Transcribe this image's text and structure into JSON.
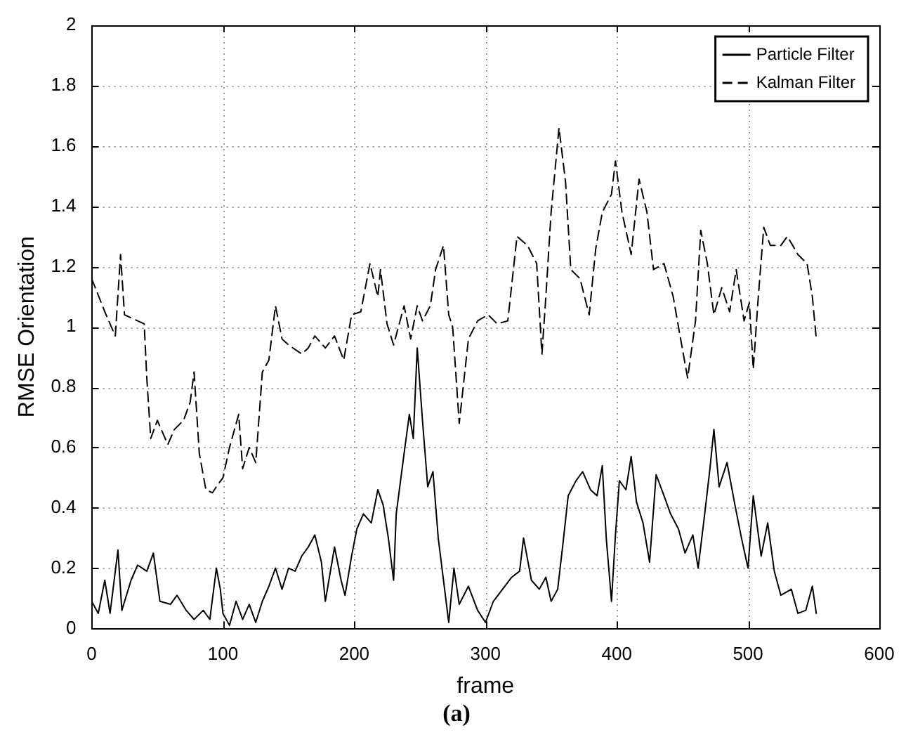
{
  "chart_data": {
    "type": "line",
    "xlabel": "frame",
    "ylabel": "RMSE Orientation",
    "xlim": [
      0,
      600
    ],
    "xticks": [
      0,
      100,
      200,
      300,
      400,
      500,
      600
    ],
    "ylim": [
      0,
      2
    ],
    "yticks": [
      0,
      0.2,
      0.4,
      0.6,
      0.8,
      1,
      1.2,
      1.4,
      1.6,
      1.8,
      2
    ],
    "grid": true,
    "legend": "top right",
    "marker": "none",
    "annotations": [
      "(a)"
    ],
    "series": [
      {
        "name": "Particle Filter",
        "color": "#000000",
        "line_style": "solid",
        "x": [
          0,
          5,
          10,
          14,
          20,
          23,
          30,
          35,
          42,
          47,
          52,
          60,
          65,
          72,
          78,
          85,
          90,
          95,
          98,
          100,
          105,
          110,
          115,
          120,
          125,
          130,
          135,
          140,
          145,
          150,
          155,
          160,
          165,
          170,
          175,
          178,
          185,
          190,
          193,
          198,
          202,
          207,
          213,
          218,
          222,
          226,
          230,
          232,
          238,
          242,
          245,
          248,
          252,
          256,
          260,
          264,
          268,
          272,
          276,
          280,
          287,
          294,
          300,
          306,
          313,
          320,
          326,
          329,
          335,
          341,
          346,
          350,
          355,
          359,
          363,
          369,
          374,
          380,
          385,
          389,
          392,
          396,
          399,
          402,
          407,
          411,
          415,
          420,
          425,
          430,
          436,
          441,
          447,
          452,
          458,
          462,
          467,
          471,
          474,
          478,
          484,
          490,
          495,
          500,
          504,
          510,
          515,
          520,
          525,
          533,
          538,
          544,
          549,
          552
        ],
        "values": [
          0.09,
          0.05,
          0.16,
          0.05,
          0.26,
          0.06,
          0.16,
          0.21,
          0.19,
          0.25,
          0.09,
          0.08,
          0.11,
          0.06,
          0.03,
          0.06,
          0.03,
          0.2,
          0.13,
          0.05,
          0.01,
          0.09,
          0.03,
          0.08,
          0.02,
          0.09,
          0.14,
          0.2,
          0.13,
          0.2,
          0.19,
          0.24,
          0.27,
          0.31,
          0.22,
          0.09,
          0.27,
          0.16,
          0.11,
          0.24,
          0.33,
          0.38,
          0.35,
          0.46,
          0.41,
          0.3,
          0.16,
          0.38,
          0.58,
          0.71,
          0.63,
          0.93,
          0.69,
          0.47,
          0.52,
          0.3,
          0.16,
          0.02,
          0.2,
          0.08,
          0.14,
          0.06,
          0.02,
          0.09,
          0.13,
          0.17,
          0.19,
          0.3,
          0.16,
          0.13,
          0.17,
          0.09,
          0.13,
          0.28,
          0.44,
          0.49,
          0.52,
          0.46,
          0.44,
          0.54,
          0.3,
          0.09,
          0.31,
          0.49,
          0.46,
          0.57,
          0.42,
          0.35,
          0.22,
          0.51,
          0.44,
          0.38,
          0.33,
          0.25,
          0.31,
          0.2,
          0.38,
          0.53,
          0.66,
          0.47,
          0.55,
          0.41,
          0.3,
          0.2,
          0.44,
          0.24,
          0.35,
          0.19,
          0.11,
          0.13,
          0.05,
          0.06,
          0.14,
          0.05
        ]
      },
      {
        "name": "Kalman Filter",
        "color": "#000000",
        "line_style": "dashed",
        "x": [
          0,
          10,
          18,
          22,
          25,
          35,
          40,
          42,
          45,
          50,
          58,
          63,
          70,
          75,
          78,
          82,
          87,
          92,
          95,
          100,
          105,
          112,
          115,
          120,
          125,
          130,
          135,
          140,
          145,
          150,
          160,
          165,
          170,
          178,
          185,
          192,
          198,
          205,
          212,
          218,
          220,
          225,
          230,
          238,
          243,
          248,
          252,
          258,
          262,
          268,
          272,
          275,
          280,
          287,
          294,
          302,
          309,
          317,
          324,
          332,
          339,
          343,
          346,
          350,
          356,
          361,
          365,
          372,
          379,
          384,
          389,
          396,
          399,
          404,
          411,
          417,
          423,
          428,
          436,
          443,
          447,
          454,
          460,
          464,
          469,
          474,
          480,
          486,
          491,
          497,
          501,
          504,
          508,
          512,
          517,
          525,
          530,
          538,
          545,
          549,
          552
        ],
        "values": [
          1.16,
          1.05,
          0.97,
          1.24,
          1.04,
          1.02,
          1.01,
          0.83,
          0.63,
          0.69,
          0.61,
          0.66,
          0.69,
          0.75,
          0.85,
          0.58,
          0.46,
          0.45,
          0.47,
          0.5,
          0.6,
          0.71,
          0.53,
          0.6,
          0.55,
          0.85,
          0.89,
          1.07,
          0.96,
          0.94,
          0.91,
          0.93,
          0.97,
          0.93,
          0.97,
          0.89,
          1.04,
          1.05,
          1.21,
          1.1,
          1.19,
          1.01,
          0.94,
          1.07,
          0.96,
          1.07,
          1.02,
          1.07,
          1.19,
          1.27,
          1.04,
          1,
          0.68,
          0.96,
          1.02,
          1.04,
          1.01,
          1.02,
          1.3,
          1.27,
          1.21,
          0.91,
          1.1,
          1.38,
          1.66,
          1.48,
          1.19,
          1.16,
          1.04,
          1.26,
          1.38,
          1.44,
          1.55,
          1.38,
          1.24,
          1.49,
          1.38,
          1.19,
          1.21,
          1.1,
          1,
          0.83,
          1.02,
          1.32,
          1.21,
          1.04,
          1.13,
          1.05,
          1.19,
          1.02,
          1.08,
          0.86,
          1.11,
          1.33,
          1.27,
          1.27,
          1.3,
          1.24,
          1.21,
          1.1,
          0.96
        ]
      }
    ]
  }
}
